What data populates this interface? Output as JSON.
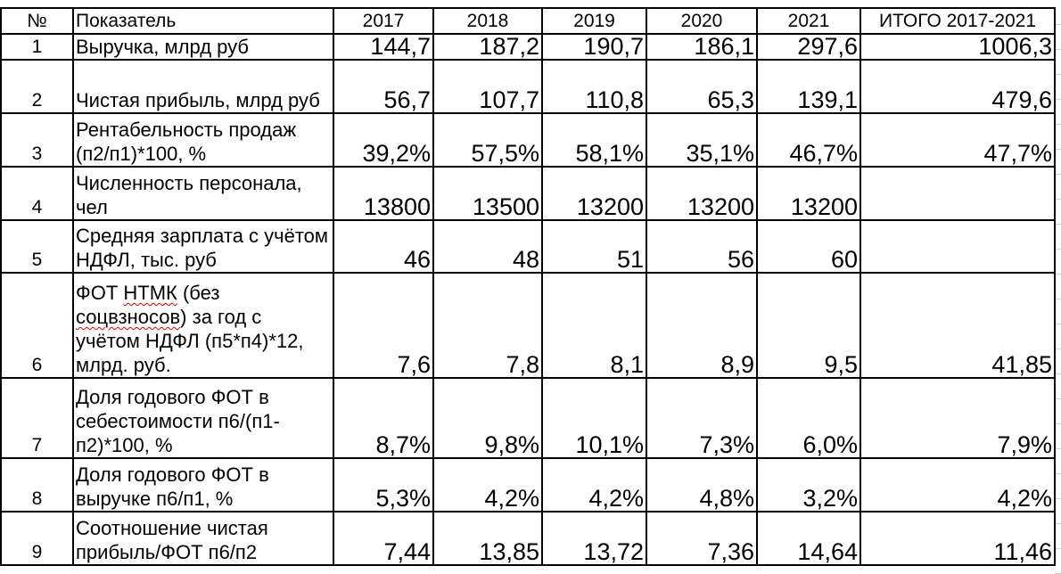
{
  "header": {
    "num": "№",
    "indicator": "Показатель",
    "years": [
      "2017",
      "2018",
      "2019",
      "2020",
      "2021"
    ],
    "total": "ИТОГО 2017-2021"
  },
  "rows": [
    {
      "num": "1",
      "name": "Выручка, млрд руб",
      "values": [
        "144,7",
        "187,2",
        "190,7",
        "186,1",
        "297,6"
      ],
      "total": "1006,3"
    },
    {
      "num": "2",
      "name": "Чистая прибыль, млрд руб",
      "values": [
        "56,7",
        "107,7",
        "110,8",
        "65,3",
        "139,1"
      ],
      "total": "479,6"
    },
    {
      "num": "3",
      "name": "Рентабельность продаж (п2/п1)*100, %",
      "values": [
        "39,2%",
        "57,5%",
        "58,1%",
        "35,1%",
        "46,7%"
      ],
      "total": "47,7%"
    },
    {
      "num": "4",
      "name": "Численность персонала, чел",
      "values": [
        "13800",
        "13500",
        "13200",
        "13200",
        "13200"
      ],
      "total": ""
    },
    {
      "num": "5",
      "name": "Средняя зарплата с учётом НДФЛ, тыс. руб",
      "values": [
        "46",
        "48",
        "51",
        "56",
        "60"
      ],
      "total": ""
    },
    {
      "num": "6",
      "name_parts": [
        "ФОТ ",
        "НТМК",
        " (без ",
        "соцвзносов",
        ") за год с учётом НДФЛ (п5*п4)*12, млрд. руб."
      ],
      "values": [
        "7,6",
        "7,8",
        "8,1",
        "8,9",
        "9,5"
      ],
      "total": "41,85"
    },
    {
      "num": "7",
      "name": "Доля годового ФОТ в себестоимости п6/(п1-п2)*100, %",
      "values": [
        "8,7%",
        "9,8%",
        "10,1%",
        "7,3%",
        "6,0%"
      ],
      "total": "7,9%"
    },
    {
      "num": "8",
      "name": "Доля годового ФОТ в выручке п6/п1, %",
      "values": [
        "5,3%",
        "4,2%",
        "4,2%",
        "4,8%",
        "3,2%"
      ],
      "total": "4,2%"
    },
    {
      "num": "9",
      "name": "Соотношение чистая прибыль/ФОТ  п6/п2",
      "values": [
        "7,44",
        "13,85",
        "13,72",
        "7,36",
        "14,64"
      ],
      "total": "11,46"
    }
  ]
}
